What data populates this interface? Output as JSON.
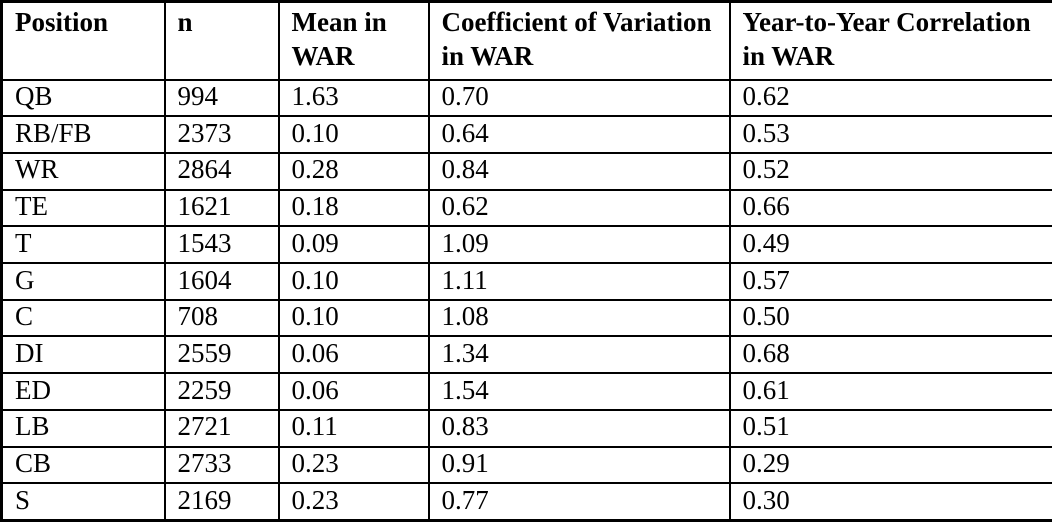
{
  "table": {
    "columns": [
      {
        "id": "position",
        "label": "Position"
      },
      {
        "id": "n",
        "label": "n"
      },
      {
        "id": "mean_war",
        "label": "Mean in WAR"
      },
      {
        "id": "cv_war",
        "label": "Coefficient of Variation in WAR"
      },
      {
        "id": "yty_corr_war",
        "label": "Year-to-Year Correlation in WAR"
      }
    ],
    "rows": [
      [
        "QB",
        "994",
        "1.63",
        "0.70",
        "0.62"
      ],
      [
        "RB/FB",
        "2373",
        "0.10",
        "0.64",
        "0.53"
      ],
      [
        "WR",
        "2864",
        "0.28",
        "0.84",
        "0.52"
      ],
      [
        "TE",
        "1621",
        "0.18",
        "0.62",
        "0.66"
      ],
      [
        "T",
        "1543",
        "0.09",
        "1.09",
        "0.49"
      ],
      [
        "G",
        "1604",
        "0.10",
        "1.11",
        "0.57"
      ],
      [
        "C",
        "708",
        "0.10",
        "1.08",
        "0.50"
      ],
      [
        "DI",
        "2559",
        "0.06",
        "1.34",
        "0.68"
      ],
      [
        "ED",
        "2259",
        "0.06",
        "1.54",
        "0.61"
      ],
      [
        "LB",
        "2721",
        "0.11",
        "0.83",
        "0.51"
      ],
      [
        "CB",
        "2733",
        "0.23",
        "0.91",
        "0.29"
      ],
      [
        "S",
        "2169",
        "0.23",
        "0.77",
        "0.30"
      ]
    ],
    "colors": {
      "border": "#000000",
      "text": "#000000",
      "background": "#ffffff"
    }
  },
  "chart_data": {
    "type": "table",
    "title": "",
    "columns": [
      "Position",
      "n",
      "Mean in WAR",
      "Coefficient of Variation in WAR",
      "Year-to-Year Correlation in WAR"
    ],
    "rows": [
      {
        "position": "QB",
        "n": 994,
        "mean_war": 1.63,
        "cv_war": 0.7,
        "yty_corr_war": 0.62
      },
      {
        "position": "RB/FB",
        "n": 2373,
        "mean_war": 0.1,
        "cv_war": 0.64,
        "yty_corr_war": 0.53
      },
      {
        "position": "WR",
        "n": 2864,
        "mean_war": 0.28,
        "cv_war": 0.84,
        "yty_corr_war": 0.52
      },
      {
        "position": "TE",
        "n": 1621,
        "mean_war": 0.18,
        "cv_war": 0.62,
        "yty_corr_war": 0.66
      },
      {
        "position": "T",
        "n": 1543,
        "mean_war": 0.09,
        "cv_war": 1.09,
        "yty_corr_war": 0.49
      },
      {
        "position": "G",
        "n": 1604,
        "mean_war": 0.1,
        "cv_war": 1.11,
        "yty_corr_war": 0.57
      },
      {
        "position": "C",
        "n": 708,
        "mean_war": 0.1,
        "cv_war": 1.08,
        "yty_corr_war": 0.5
      },
      {
        "position": "DI",
        "n": 2559,
        "mean_war": 0.06,
        "cv_war": 1.34,
        "yty_corr_war": 0.68
      },
      {
        "position": "ED",
        "n": 2259,
        "mean_war": 0.06,
        "cv_war": 1.54,
        "yty_corr_war": 0.61
      },
      {
        "position": "LB",
        "n": 2721,
        "mean_war": 0.11,
        "cv_war": 0.83,
        "yty_corr_war": 0.51
      },
      {
        "position": "CB",
        "n": 2733,
        "mean_war": 0.23,
        "cv_war": 0.91,
        "yty_corr_war": 0.29
      },
      {
        "position": "S",
        "n": 2169,
        "mean_war": 0.23,
        "cv_war": 0.77,
        "yty_corr_war": 0.3
      }
    ]
  }
}
